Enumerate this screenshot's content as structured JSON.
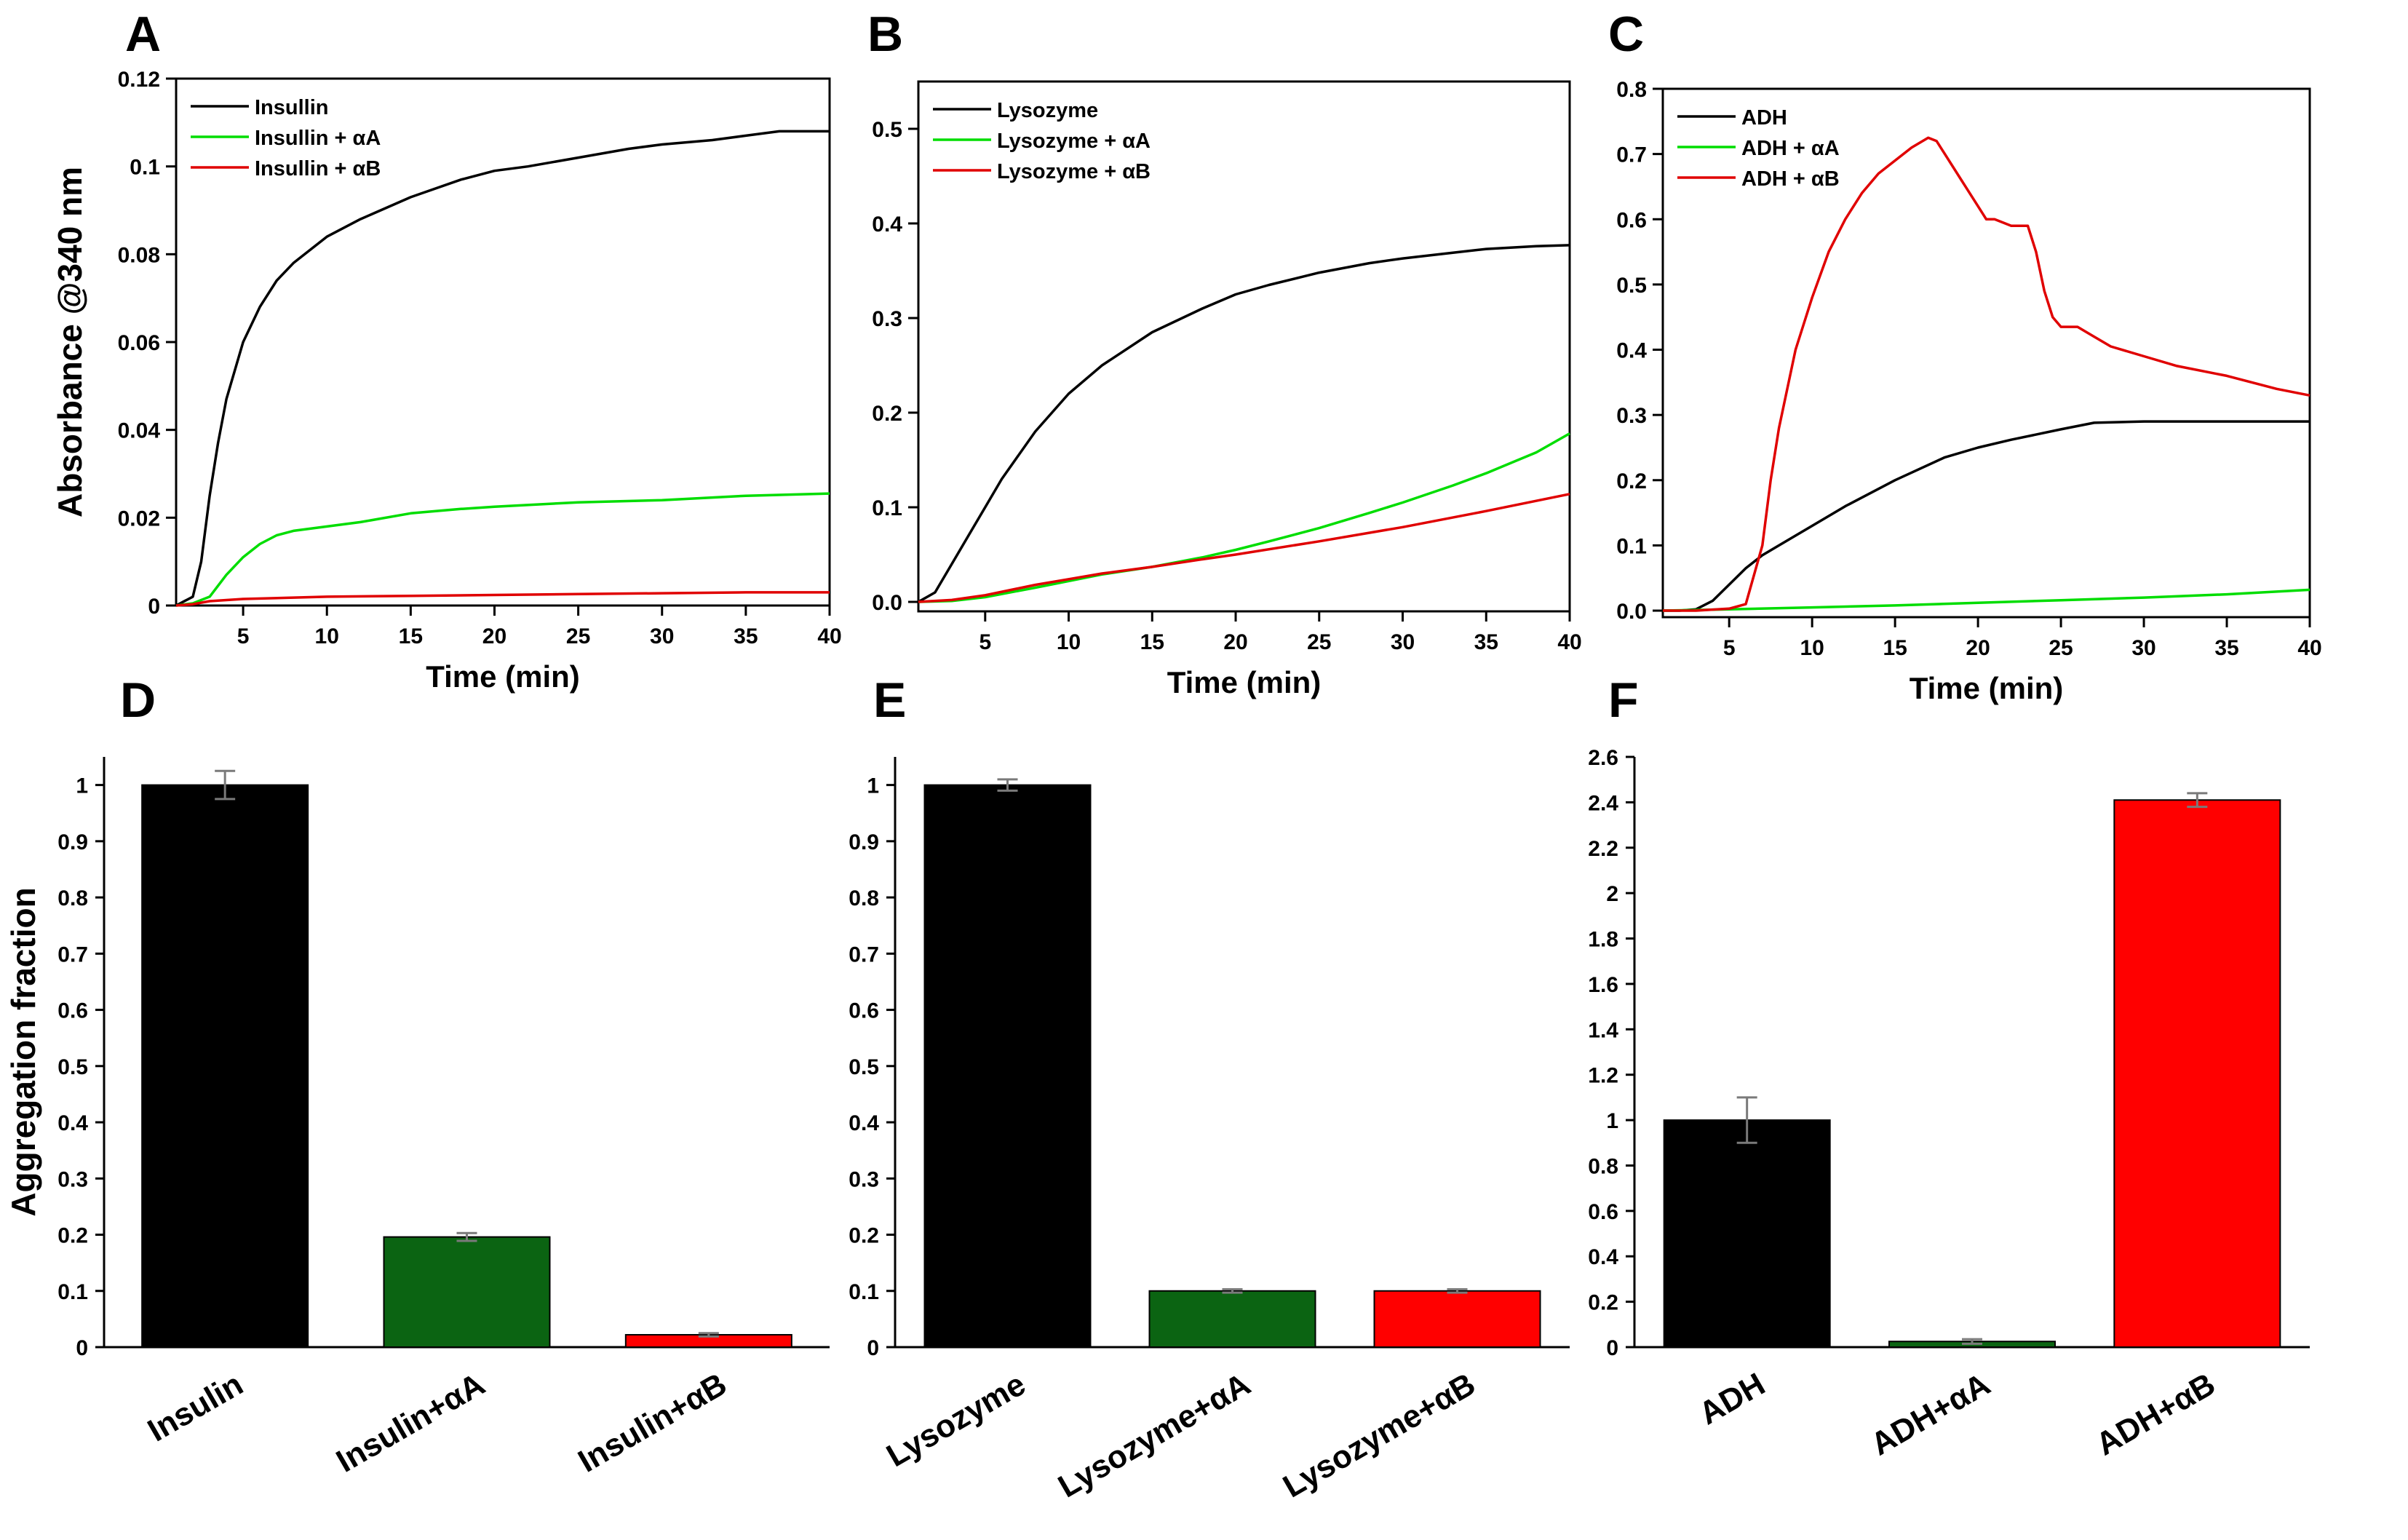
{
  "chart_data": [
    {
      "panel": "A",
      "type": "line",
      "xlabel": "Time (min)",
      "ylabel": "Absorbance @340 nm",
      "xlim": [
        1,
        40
      ],
      "ylim": [
        0,
        0.12
      ],
      "xticks": [
        5,
        10,
        15,
        20,
        25,
        30,
        35,
        40
      ],
      "yticks": [
        0,
        0.02,
        0.04,
        0.06,
        0.08,
        0.1,
        0.12
      ],
      "ytick_labels": [
        "0",
        "0.02",
        "0.04",
        "0.06",
        "0.08",
        "0.1",
        "0.12"
      ],
      "legend_position": "top-left",
      "series": [
        {
          "name": "Insullin",
          "color": "#000000",
          "x": [
            1,
            2,
            2.5,
            3,
            3.5,
            4,
            5,
            6,
            7,
            8,
            10,
            12,
            15,
            18,
            20,
            22,
            25,
            28,
            30,
            33,
            35,
            37,
            38,
            40
          ],
          "y": [
            0,
            0.002,
            0.01,
            0.025,
            0.037,
            0.047,
            0.06,
            0.068,
            0.074,
            0.078,
            0.084,
            0.088,
            0.093,
            0.097,
            0.099,
            0.1,
            0.102,
            0.104,
            0.105,
            0.106,
            0.107,
            0.108,
            0.108,
            0.108
          ]
        },
        {
          "name": "Insullin + αA",
          "color": "#00dd00",
          "x": [
            1,
            2,
            3,
            4,
            5,
            6,
            7,
            8,
            10,
            12,
            15,
            18,
            20,
            25,
            30,
            35,
            40
          ],
          "y": [
            0,
            0.0005,
            0.002,
            0.007,
            0.011,
            0.014,
            0.016,
            0.017,
            0.018,
            0.019,
            0.021,
            0.022,
            0.0225,
            0.0235,
            0.024,
            0.025,
            0.0255
          ]
        },
        {
          "name": "Insullin + αB",
          "color": "#e00000",
          "x": [
            1,
            2,
            3,
            5,
            10,
            15,
            20,
            25,
            30,
            35,
            40
          ],
          "y": [
            0,
            0.0003,
            0.001,
            0.0015,
            0.002,
            0.0022,
            0.0024,
            0.0026,
            0.0028,
            0.003,
            0.003
          ]
        }
      ]
    },
    {
      "panel": "B",
      "type": "line",
      "xlabel": "Time (min)",
      "ylabel": "",
      "xlim": [
        1,
        40
      ],
      "ylim": [
        -0.01,
        0.55
      ],
      "xticks": [
        5,
        10,
        15,
        20,
        25,
        30,
        35,
        40
      ],
      "yticks": [
        0,
        0.1,
        0.2,
        0.3,
        0.4,
        0.5
      ],
      "ytick_labels": [
        "0.0",
        "0.1",
        "0.2",
        "0.3",
        "0.4",
        "0.5"
      ],
      "legend_position": "top-left",
      "series": [
        {
          "name": "Lysozyme",
          "color": "#000000",
          "x": [
            1,
            2,
            3,
            4,
            5,
            6,
            8,
            10,
            12,
            15,
            18,
            20,
            22,
            25,
            28,
            30,
            33,
            35,
            38,
            40
          ],
          "y": [
            0,
            0.01,
            0.04,
            0.07,
            0.1,
            0.13,
            0.18,
            0.22,
            0.25,
            0.285,
            0.31,
            0.325,
            0.335,
            0.348,
            0.358,
            0.363,
            0.369,
            0.373,
            0.376,
            0.377
          ]
        },
        {
          "name": "Lysozyme + αA",
          "color": "#00dd00",
          "x": [
            1,
            3,
            5,
            8,
            10,
            12,
            15,
            18,
            20,
            22,
            25,
            28,
            30,
            33,
            35,
            38,
            40
          ],
          "y": [
            0,
            0.001,
            0.005,
            0.015,
            0.022,
            0.029,
            0.037,
            0.047,
            0.055,
            0.064,
            0.078,
            0.094,
            0.105,
            0.123,
            0.136,
            0.158,
            0.178
          ]
        },
        {
          "name": "Lysozyme + αB",
          "color": "#e00000",
          "x": [
            1,
            3,
            5,
            8,
            10,
            12,
            15,
            18,
            20,
            25,
            30,
            35,
            40
          ],
          "y": [
            0,
            0.002,
            0.007,
            0.018,
            0.024,
            0.03,
            0.037,
            0.045,
            0.05,
            0.064,
            0.079,
            0.096,
            0.114
          ]
        }
      ]
    },
    {
      "panel": "C",
      "type": "line",
      "xlabel": "Time (min)",
      "ylabel": "",
      "xlim": [
        1,
        40
      ],
      "ylim": [
        -0.01,
        0.8
      ],
      "xticks": [
        5,
        10,
        15,
        20,
        25,
        30,
        35,
        40
      ],
      "yticks": [
        0,
        0.1,
        0.2,
        0.3,
        0.4,
        0.5,
        0.6,
        0.7,
        0.8
      ],
      "ytick_labels": [
        "0.0",
        "0.1",
        "0.2",
        "0.3",
        "0.4",
        "0.5",
        "0.6",
        "0.7",
        "0.8"
      ],
      "legend_position": "top-left",
      "series": [
        {
          "name": "ADH",
          "color": "#000000",
          "x": [
            1,
            2,
            3,
            4,
            5,
            6,
            7,
            8,
            10,
            12,
            15,
            18,
            20,
            22,
            25,
            27,
            30,
            35,
            40
          ],
          "y": [
            0,
            0.0,
            0.002,
            0.015,
            0.04,
            0.065,
            0.085,
            0.1,
            0.13,
            0.16,
            0.2,
            0.235,
            0.25,
            0.262,
            0.278,
            0.288,
            0.29,
            0.29,
            0.29
          ]
        },
        {
          "name": "ADH + αA",
          "color": "#00dd00",
          "x": [
            1,
            5,
            10,
            15,
            20,
            25,
            30,
            35,
            40
          ],
          "y": [
            0,
            0.002,
            0.005,
            0.008,
            0.012,
            0.016,
            0.02,
            0.025,
            0.032
          ]
        },
        {
          "name": "ADH + αB",
          "color": "#e00000",
          "x": [
            1,
            3,
            5,
            6,
            7,
            7.5,
            8,
            9,
            10,
            11,
            12,
            13,
            14,
            15,
            16,
            17,
            17.5,
            18,
            19,
            20,
            20.5,
            21,
            22,
            23,
            23.5,
            24,
            24.5,
            25,
            26,
            27,
            28,
            30,
            32,
            35,
            38,
            40
          ],
          "y": [
            0,
            0.0,
            0.003,
            0.01,
            0.1,
            0.2,
            0.28,
            0.4,
            0.48,
            0.55,
            0.6,
            0.64,
            0.67,
            0.69,
            0.71,
            0.725,
            0.72,
            0.7,
            0.66,
            0.62,
            0.6,
            0.6,
            0.59,
            0.59,
            0.55,
            0.49,
            0.45,
            0.435,
            0.435,
            0.42,
            0.405,
            0.39,
            0.375,
            0.36,
            0.34,
            0.33
          ]
        }
      ]
    },
    {
      "panel": "D",
      "type": "bar",
      "xlabel": "",
      "ylabel": "Aggregation fraction",
      "ylim": [
        0,
        1.05
      ],
      "yticks": [
        0,
        0.1,
        0.2,
        0.3,
        0.4,
        0.5,
        0.6,
        0.7,
        0.8,
        0.9,
        1
      ],
      "ytick_labels": [
        "0",
        "0.1",
        "0.2",
        "0.3",
        "0.4",
        "0.5",
        "0.6",
        "0.7",
        "0.8",
        "0.9",
        "1"
      ],
      "categories": [
        "Insulin",
        "Insulin+αA",
        "Insulin+αB"
      ],
      "values": [
        1.0,
        0.196,
        0.022
      ],
      "errors": [
        0.025,
        0.007,
        0.003
      ],
      "colors": [
        "#000000",
        "#0b6412",
        "#ff0000"
      ]
    },
    {
      "panel": "E",
      "type": "bar",
      "xlabel": "",
      "ylabel": "",
      "ylim": [
        0,
        1.05
      ],
      "yticks": [
        0,
        0.1,
        0.2,
        0.3,
        0.4,
        0.5,
        0.6,
        0.7,
        0.8,
        0.9,
        1
      ],
      "ytick_labels": [
        "0",
        "0.1",
        "0.2",
        "0.3",
        "0.4",
        "0.5",
        "0.6",
        "0.7",
        "0.8",
        "0.9",
        "1"
      ],
      "categories": [
        "Lysozyme",
        "Lysozyme+αA",
        "Lysozyme+αB"
      ],
      "values": [
        1.0,
        0.1,
        0.1
      ],
      "errors": [
        0.01,
        0.003,
        0.003
      ],
      "colors": [
        "#000000",
        "#0b6412",
        "#ff0000"
      ]
    },
    {
      "panel": "F",
      "type": "bar",
      "xlabel": "",
      "ylabel": "",
      "ylim": [
        0,
        2.6
      ],
      "yticks": [
        0,
        0.2,
        0.4,
        0.6,
        0.8,
        1,
        1.2,
        1.4,
        1.6,
        1.8,
        2,
        2.2,
        2.4,
        2.6
      ],
      "ytick_labels": [
        "0",
        "0.2",
        "0.4",
        "0.6",
        "0.8",
        "1",
        "1.2",
        "1.4",
        "1.6",
        "1.8",
        "2",
        "2.2",
        "2.4",
        "2.6"
      ],
      "categories": [
        "ADH",
        "ADH+αA",
        "ADH+αB"
      ],
      "values": [
        1.0,
        0.025,
        2.41
      ],
      "errors": [
        0.1,
        0.01,
        0.03
      ],
      "colors": [
        "#000000",
        "#0b6412",
        "#ff0000"
      ]
    }
  ]
}
